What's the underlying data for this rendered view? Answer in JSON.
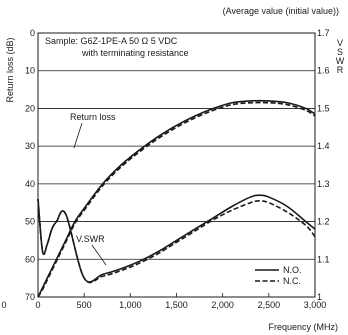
{
  "chart_data": {
    "type": "line",
    "subtitle": "(Average value (initial value))",
    "xlabel": "Frequency (MHz)",
    "ylabel_left": "Return loss (dB)",
    "ylabel_right": "V S W R",
    "xlim": [
      0,
      3000
    ],
    "x_ticks": [
      0,
      500,
      1000,
      1500,
      2000,
      2500,
      3000
    ],
    "x_tick_labels": [
      "0",
      "500",
      "1,000",
      "1,500",
      "2,000",
      "2,500",
      "3,000"
    ],
    "ylim_left": [
      0,
      70
    ],
    "y_left_ticks": [
      0,
      10,
      20,
      30,
      40,
      50,
      60,
      70
    ],
    "y_left_tick_labels": [
      "0",
      "10",
      "20",
      "30",
      "40",
      "50",
      "60",
      "70"
    ],
    "ylim_right": [
      1.0,
      1.7
    ],
    "y_right_ticks": [
      1.0,
      1.1,
      1.2,
      1.3,
      1.4,
      1.5,
      1.6,
      1.7
    ],
    "y_right_tick_labels": [
      "1",
      "1.1",
      "1.2",
      "1.3",
      "1.4",
      "1.5",
      "1.6",
      "1.7"
    ],
    "left_axis_inverted": true,
    "grid": "horizontal",
    "stray_label": "0",
    "annotation_sample_line1": "Sample: G6Z-1PE-A  50 Ω 5 VDC",
    "annotation_sample_line2": "with terminating resistance",
    "label_return_loss": "Return loss",
    "label_vswr": "V.SWR",
    "legend": [
      {
        "name": "N.O.",
        "style": "solid"
      },
      {
        "name": "N.C.",
        "style": "dashed"
      }
    ],
    "legend_position": "bottom-right",
    "series": [
      {
        "name": "N.O.",
        "group": "Return loss",
        "axis": "left",
        "x": [
          0,
          50,
          100,
          200,
          300,
          400,
          500,
          700,
          900,
          1100,
          1300,
          1500,
          1700,
          1900,
          2100,
          2300,
          2500,
          2700,
          2900,
          3000
        ],
        "y": [
          70.0,
          67.5,
          65.0,
          60.0,
          55.0,
          50.0,
          46.5,
          40.0,
          35.0,
          31.0,
          27.5,
          24.5,
          22.0,
          20.0,
          18.5,
          18.0,
          18.0,
          18.5,
          20.0,
          21.5
        ]
      },
      {
        "name": "N.C.",
        "group": "Return loss",
        "axis": "left",
        "x": [
          0,
          50,
          100,
          200,
          300,
          400,
          500,
          700,
          900,
          1100,
          1300,
          1500,
          1700,
          1900,
          2100,
          2300,
          2500,
          2700,
          2900,
          3000
        ],
        "y": [
          70.0,
          68.0,
          65.5,
          60.5,
          55.5,
          50.5,
          47.0,
          40.5,
          35.5,
          31.5,
          28.0,
          25.0,
          22.5,
          20.5,
          19.0,
          18.5,
          18.5,
          19.0,
          20.5,
          22.0
        ]
      },
      {
        "name": "N.O.",
        "group": "V.SWR",
        "axis": "right",
        "x": [
          0,
          50,
          100,
          150,
          200,
          300,
          500,
          700,
          900,
          1100,
          1300,
          1500,
          1700,
          1900,
          2100,
          2300,
          2400,
          2500,
          2700,
          2900,
          3000
        ],
        "y": [
          1.26,
          1.12,
          1.14,
          1.18,
          1.2,
          1.22,
          1.05,
          1.06,
          1.075,
          1.095,
          1.12,
          1.15,
          1.18,
          1.21,
          1.24,
          1.265,
          1.27,
          1.265,
          1.24,
          1.2,
          1.18
        ]
      },
      {
        "name": "N.C.",
        "group": "V.SWR",
        "axis": "right",
        "x": [
          0,
          50,
          100,
          150,
          200,
          300,
          500,
          700,
          900,
          1100,
          1300,
          1500,
          1700,
          1900,
          2100,
          2300,
          2400,
          2500,
          2700,
          2900,
          3000
        ],
        "y": [
          1.26,
          1.12,
          1.14,
          1.18,
          1.2,
          1.22,
          1.05,
          1.055,
          1.07,
          1.09,
          1.115,
          1.145,
          1.175,
          1.205,
          1.23,
          1.25,
          1.255,
          1.25,
          1.225,
          1.19,
          1.16
        ]
      }
    ]
  }
}
